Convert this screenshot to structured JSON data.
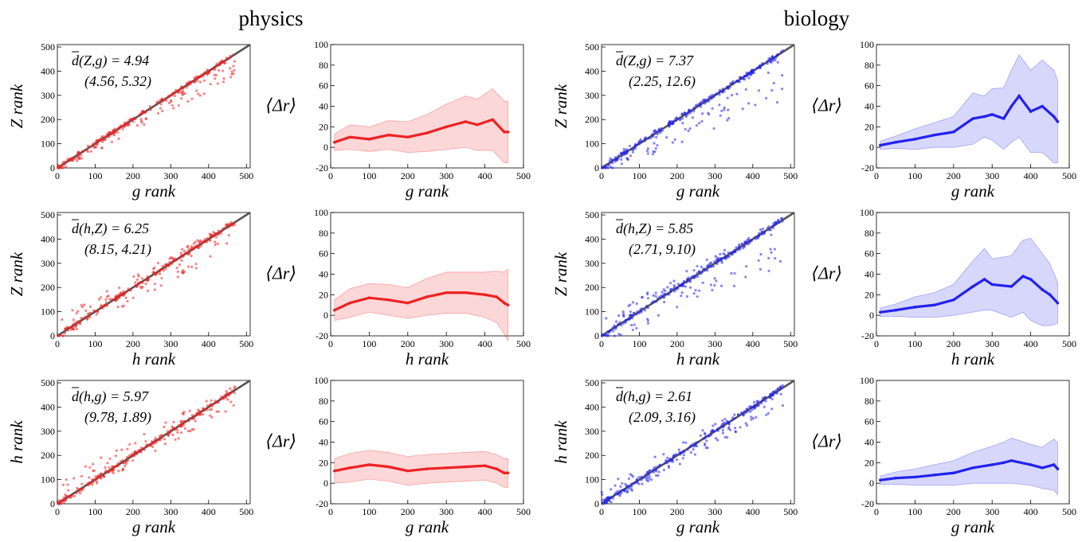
{
  "figure": {
    "columns": [
      {
        "title": "physics",
        "color": "#ee2222"
      },
      {
        "title": "biology",
        "color": "#2222ee"
      }
    ]
  },
  "chart_data": [
    {
      "type": "scatter",
      "group": "physics",
      "row": 0,
      "xlabel": "g rank",
      "ylabel": "Z rank",
      "xlim": [
        0,
        510
      ],
      "ylim": [
        0,
        510
      ],
      "xticks": [
        0,
        100,
        200,
        300,
        400,
        500
      ],
      "yticks": [
        0,
        100,
        200,
        300,
        400,
        500
      ],
      "diagonal": true,
      "annotation": {
        "line1": "d(Z,g) = 4.94",
        "line2": "(4.56, 5.32)"
      },
      "point_spread": {
        "down": 80,
        "up": 14
      },
      "x_max": 470
    },
    {
      "type": "line",
      "group": "physics",
      "row": 0,
      "xlabel": "g rank",
      "ylabel": "⟨Δr⟩",
      "xlim": [
        0,
        500
      ],
      "ylim": [
        -20,
        100
      ],
      "xticks": [
        0,
        100,
        200,
        300,
        400,
        500
      ],
      "yticks": [
        -20,
        0,
        20,
        40,
        60,
        80,
        100
      ],
      "x": [
        10,
        50,
        100,
        150,
        200,
        250,
        300,
        350,
        380,
        420,
        450,
        460
      ],
      "y": [
        5,
        10,
        8,
        12,
        10,
        14,
        20,
        25,
        22,
        27,
        15,
        15
      ],
      "err": [
        8,
        12,
        12,
        14,
        15,
        18,
        22,
        25,
        25,
        30,
        30,
        30
      ]
    },
    {
      "type": "scatter",
      "group": "biology",
      "row": 0,
      "xlabel": "g rank",
      "ylabel": "Z rank",
      "xlim": [
        0,
        510
      ],
      "ylim": [
        0,
        510
      ],
      "xticks": [
        0,
        100,
        200,
        300,
        400,
        500
      ],
      "yticks": [
        0,
        100,
        200,
        300,
        400,
        500
      ],
      "diagonal": true,
      "annotation": {
        "line1": "d(Z,g) = 7.37",
        "line2": "(2.25, 12.6)"
      },
      "point_spread": {
        "down": 170,
        "up": 18
      },
      "x_max": 480
    },
    {
      "type": "line",
      "group": "biology",
      "row": 0,
      "xlabel": "g rank",
      "ylabel": "⟨Δr⟩",
      "xlim": [
        0,
        500
      ],
      "ylim": [
        -20,
        100
      ],
      "xticks": [
        0,
        100,
        200,
        300,
        400,
        500
      ],
      "yticks": [
        -20,
        0,
        20,
        40,
        60,
        80,
        100
      ],
      "x": [
        10,
        50,
        100,
        150,
        200,
        250,
        280,
        300,
        330,
        350,
        370,
        400,
        430,
        460,
        470
      ],
      "y": [
        2,
        5,
        8,
        12,
        15,
        28,
        30,
        32,
        28,
        40,
        50,
        35,
        40,
        30,
        25
      ],
      "err": [
        4,
        6,
        10,
        12,
        15,
        25,
        20,
        25,
        30,
        35,
        40,
        40,
        45,
        45,
        40
      ]
    },
    {
      "type": "scatter",
      "group": "physics",
      "row": 1,
      "xlabel": "h rank",
      "ylabel": "Z rank",
      "xlim": [
        0,
        510
      ],
      "ylim": [
        0,
        510
      ],
      "xticks": [
        0,
        100,
        200,
        300,
        400,
        500
      ],
      "yticks": [
        0,
        100,
        200,
        300,
        400,
        500
      ],
      "diagonal": true,
      "annotation": {
        "line1": "d(h,Z) = 6.25",
        "line2": "(8.15, 4.21)"
      },
      "point_spread": {
        "down": 90,
        "up": 60
      },
      "x_max": 470
    },
    {
      "type": "line",
      "group": "physics",
      "row": 1,
      "xlabel": "h rank",
      "ylabel": "⟨Δr⟩",
      "xlim": [
        0,
        500
      ],
      "ylim": [
        -20,
        100
      ],
      "xticks": [
        0,
        100,
        200,
        300,
        400,
        500
      ],
      "yticks": [
        -20,
        0,
        20,
        40,
        60,
        80,
        100
      ],
      "x": [
        10,
        50,
        100,
        150,
        200,
        250,
        300,
        350,
        400,
        430,
        450,
        460
      ],
      "y": [
        5,
        12,
        17,
        15,
        12,
        18,
        22,
        22,
        20,
        18,
        12,
        10
      ],
      "err": [
        10,
        14,
        14,
        15,
        15,
        18,
        20,
        20,
        22,
        25,
        30,
        35
      ]
    },
    {
      "type": "scatter",
      "group": "biology",
      "row": 1,
      "xlabel": "h rank",
      "ylabel": "Z rank",
      "xlim": [
        0,
        510
      ],
      "ylim": [
        0,
        510
      ],
      "xticks": [
        0,
        100,
        200,
        300,
        400,
        500
      ],
      "yticks": [
        0,
        100,
        200,
        300,
        400,
        500
      ],
      "diagonal": true,
      "annotation": {
        "line1": "d(h,Z) = 5.85",
        "line2": "(2.71, 9.10)"
      },
      "point_spread": {
        "down": 160,
        "up": 60
      },
      "x_max": 480
    },
    {
      "type": "line",
      "group": "biology",
      "row": 1,
      "xlabel": "h rank",
      "ylabel": "⟨Δr⟩",
      "xlim": [
        0,
        500
      ],
      "ylim": [
        -20,
        100
      ],
      "xticks": [
        0,
        100,
        200,
        300,
        400,
        500
      ],
      "yticks": [
        -20,
        0,
        20,
        40,
        60,
        80,
        100
      ],
      "x": [
        10,
        50,
        100,
        150,
        200,
        250,
        280,
        300,
        350,
        380,
        400,
        430,
        450,
        470
      ],
      "y": [
        3,
        5,
        8,
        10,
        15,
        28,
        35,
        30,
        28,
        38,
        35,
        25,
        20,
        12
      ],
      "err": [
        4,
        6,
        10,
        12,
        15,
        25,
        30,
        25,
        30,
        35,
        40,
        35,
        30,
        20
      ]
    },
    {
      "type": "scatter",
      "group": "physics",
      "row": 2,
      "xlabel": "g rank",
      "ylabel": "h rank",
      "xlim": [
        0,
        510
      ],
      "ylim": [
        0,
        510
      ],
      "xticks": [
        0,
        100,
        200,
        300,
        400,
        500
      ],
      "yticks": [
        0,
        100,
        200,
        300,
        400,
        500
      ],
      "diagonal": true,
      "annotation": {
        "line1": "d(h,g) = 5.97",
        "line2": "(9.78, 1.89)"
      },
      "point_spread": {
        "down": 60,
        "up": 90
      },
      "x_max": 470
    },
    {
      "type": "line",
      "group": "physics",
      "row": 2,
      "xlabel": "g rank",
      "ylabel": "⟨Δr⟩",
      "xlim": [
        0,
        500
      ],
      "ylim": [
        -20,
        100
      ],
      "xticks": [
        0,
        100,
        200,
        300,
        400,
        500
      ],
      "yticks": [
        -20,
        0,
        20,
        40,
        60,
        80,
        100
      ],
      "x": [
        10,
        50,
        100,
        150,
        200,
        250,
        300,
        350,
        400,
        430,
        450,
        460
      ],
      "y": [
        12,
        15,
        18,
        16,
        12,
        14,
        15,
        16,
        17,
        14,
        10,
        10
      ],
      "err": [
        12,
        14,
        14,
        14,
        14,
        14,
        14,
        14,
        14,
        14,
        14,
        14
      ]
    },
    {
      "type": "scatter",
      "group": "biology",
      "row": 2,
      "xlabel": "g rank",
      "ylabel": "h rank",
      "xlim": [
        0,
        510
      ],
      "ylim": [
        0,
        510
      ],
      "xticks": [
        0,
        100,
        200,
        300,
        400,
        500
      ],
      "yticks": [
        0,
        100,
        200,
        300,
        400,
        500
      ],
      "diagonal": true,
      "annotation": {
        "line1": "d(h,g) = 2.61",
        "line2": "(2.09, 3.16)"
      },
      "point_spread": {
        "down": 70,
        "up": 60
      },
      "x_max": 480
    },
    {
      "type": "line",
      "group": "biology",
      "row": 2,
      "xlabel": "g rank",
      "ylabel": "⟨Δr⟩",
      "xlim": [
        0,
        500
      ],
      "ylim": [
        -20,
        100
      ],
      "xticks": [
        0,
        100,
        200,
        300,
        400,
        500
      ],
      "yticks": [
        -20,
        0,
        20,
        40,
        60,
        80,
        100
      ],
      "x": [
        10,
        50,
        100,
        150,
        200,
        250,
        300,
        330,
        350,
        400,
        430,
        460,
        470
      ],
      "y": [
        3,
        5,
        6,
        8,
        10,
        15,
        18,
        20,
        22,
        18,
        15,
        18,
        14
      ],
      "err": [
        4,
        6,
        8,
        10,
        12,
        15,
        18,
        20,
        22,
        20,
        20,
        25,
        25
      ]
    }
  ]
}
